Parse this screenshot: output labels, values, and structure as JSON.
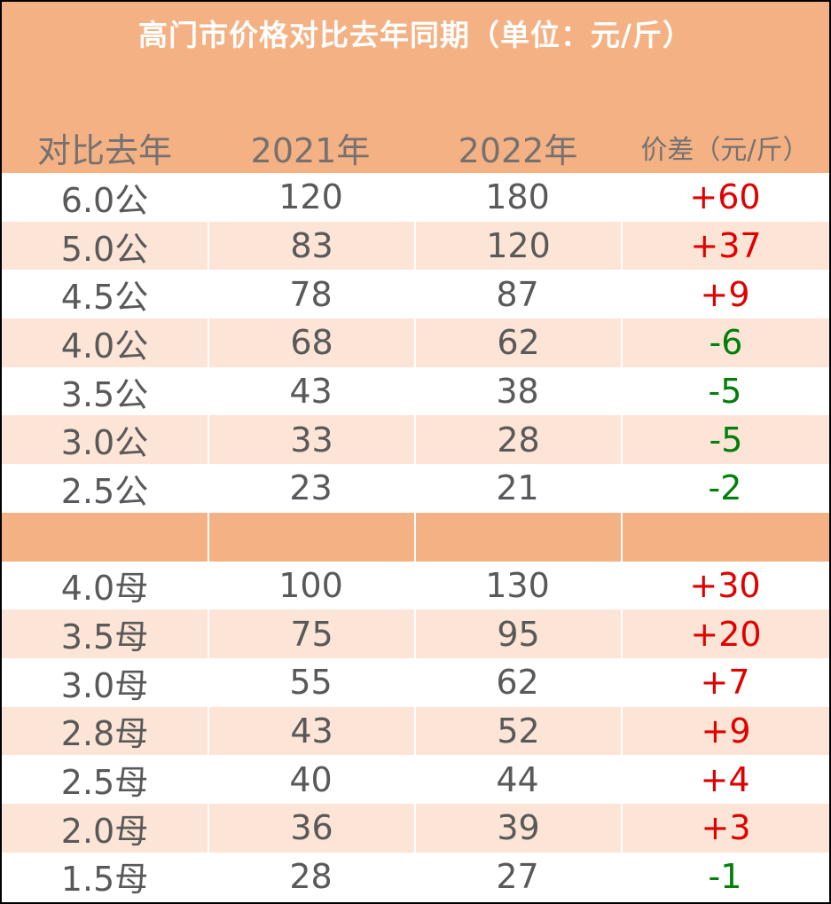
{
  "title": "高门市价格对比去年同期（单位：元/斤）",
  "headers": [
    "对比去年",
    "2021年",
    "2022年",
    "价差（元/斤）"
  ],
  "colors": {
    "banner": "#f4b183",
    "stripe": "#fce4d6",
    "text": "#595959",
    "positive": "#e00000",
    "negative": "#00800a"
  },
  "rows": [
    {
      "label": "6.0公",
      "y2021": "120",
      "y2022": "180",
      "diff": "+60",
      "sign": "pos"
    },
    {
      "label": "5.0公",
      "y2021": "83",
      "y2022": "120",
      "diff": "+37",
      "sign": "pos"
    },
    {
      "label": "4.5公",
      "y2021": "78",
      "y2022": "87",
      "diff": "+9",
      "sign": "pos"
    },
    {
      "label": "4.0公",
      "y2021": "68",
      "y2022": "62",
      "diff": "-6",
      "sign": "neg"
    },
    {
      "label": "3.5公",
      "y2021": "43",
      "y2022": "38",
      "diff": "-5",
      "sign": "neg"
    },
    {
      "label": "3.0公",
      "y2021": "33",
      "y2022": "28",
      "diff": "-5",
      "sign": "neg"
    },
    {
      "label": "2.5公",
      "y2021": "23",
      "y2022": "21",
      "diff": "-2",
      "sign": "neg"
    },
    {
      "label": "",
      "y2021": "",
      "y2022": "",
      "diff": "",
      "sign": "sep"
    },
    {
      "label": "4.0母",
      "y2021": "100",
      "y2022": "130",
      "diff": "+30",
      "sign": "pos"
    },
    {
      "label": "3.5母",
      "y2021": "75",
      "y2022": "95",
      "diff": "+20",
      "sign": "pos"
    },
    {
      "label": "3.0母",
      "y2021": "55",
      "y2022": "62",
      "diff": "+7",
      "sign": "pos"
    },
    {
      "label": "2.8母",
      "y2021": "43",
      "y2022": "52",
      "diff": "+9",
      "sign": "pos"
    },
    {
      "label": "2.5母",
      "y2021": "40",
      "y2022": "44",
      "diff": "+4",
      "sign": "pos"
    },
    {
      "label": "2.0母",
      "y2021": "36",
      "y2022": "39",
      "diff": "+3",
      "sign": "pos"
    },
    {
      "label": "1.5母",
      "y2021": "28",
      "y2022": "27",
      "diff": "-1",
      "sign": "neg"
    }
  ]
}
